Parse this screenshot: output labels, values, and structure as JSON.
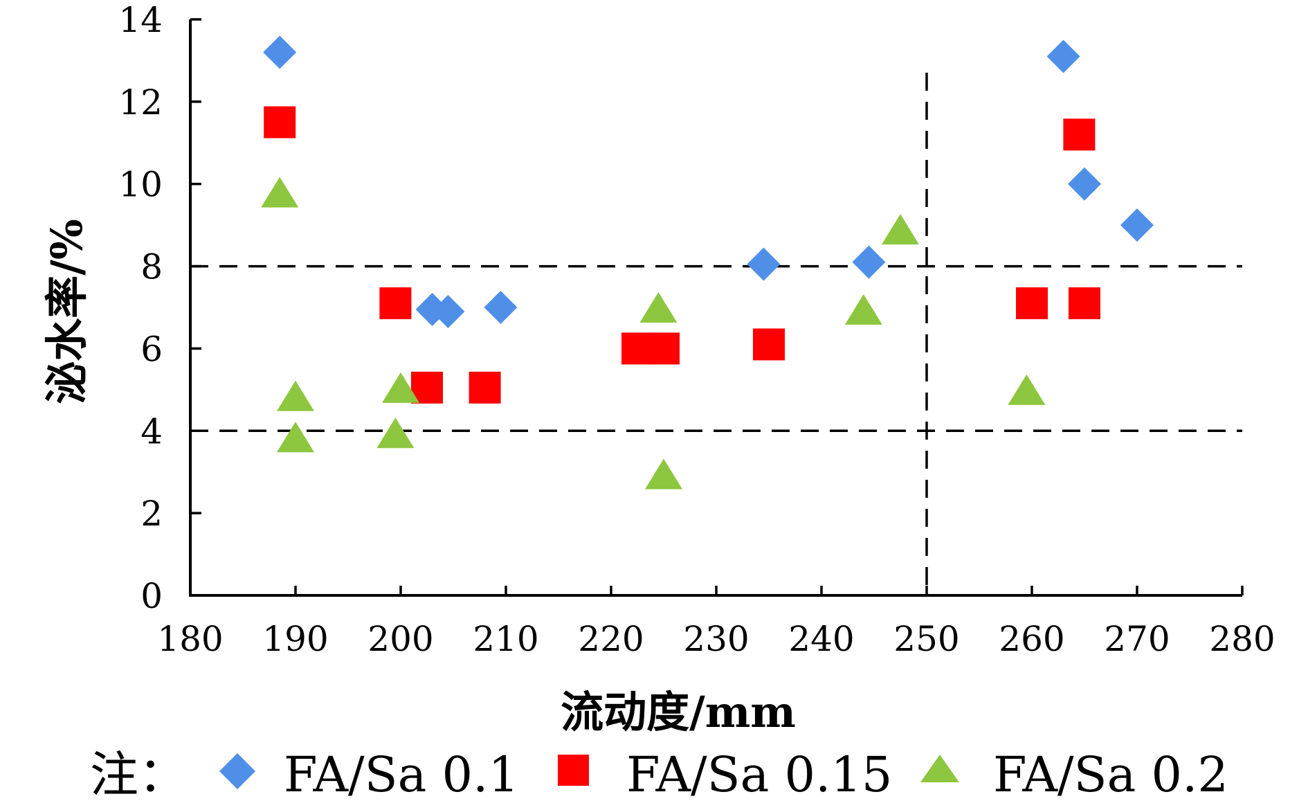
{
  "chart_data": {
    "type": "scatter",
    "xlabel": "流动度/mm",
    "ylabel": "泌水率/%",
    "xlim": [
      180,
      280
    ],
    "ylim": [
      0,
      14
    ],
    "xticks": [
      "180",
      "190",
      "200",
      "210",
      "220",
      "230",
      "240",
      "250",
      "260",
      "270",
      "280"
    ],
    "yticks": [
      "0",
      "2",
      "4",
      "6",
      "8",
      "10",
      "12",
      "14"
    ],
    "grid": false,
    "reference_lines": {
      "horizontal": [
        4,
        8
      ],
      "vertical": [
        250
      ],
      "style": "dashed"
    },
    "series": [
      {
        "name": "FA/Sa 0.1",
        "marker": "diamond",
        "color": "#4F8FE8",
        "points": [
          {
            "x": 188.5,
            "y": 13.2
          },
          {
            "x": 203,
            "y": 6.95
          },
          {
            "x": 204.5,
            "y": 6.9
          },
          {
            "x": 209.5,
            "y": 7.0
          },
          {
            "x": 234.5,
            "y": 8.05
          },
          {
            "x": 244.5,
            "y": 8.1
          },
          {
            "x": 263,
            "y": 13.1
          },
          {
            "x": 265,
            "y": 10.0
          },
          {
            "x": 270,
            "y": 9.0
          }
        ]
      },
      {
        "name": "FA/Sa 0.15",
        "marker": "square",
        "color": "#FF0000",
        "points": [
          {
            "x": 188.5,
            "y": 11.5
          },
          {
            "x": 199.5,
            "y": 7.1
          },
          {
            "x": 202.5,
            "y": 5.05
          },
          {
            "x": 208,
            "y": 5.05
          },
          {
            "x": 222.5,
            "y": 6.0
          },
          {
            "x": 225,
            "y": 6.0
          },
          {
            "x": 235,
            "y": 6.1
          },
          {
            "x": 260,
            "y": 7.1
          },
          {
            "x": 264.5,
            "y": 11.2
          },
          {
            "x": 265,
            "y": 7.1
          }
        ]
      },
      {
        "name": "FA/Sa 0.2",
        "marker": "triangle",
        "color": "#8DC63F",
        "points": [
          {
            "x": 188.5,
            "y": 9.8
          },
          {
            "x": 190,
            "y": 4.85
          },
          {
            "x": 190,
            "y": 3.85
          },
          {
            "x": 199.5,
            "y": 3.95
          },
          {
            "x": 200,
            "y": 5.05
          },
          {
            "x": 224.5,
            "y": 7.0
          },
          {
            "x": 225,
            "y": 2.95
          },
          {
            "x": 244,
            "y": 6.95
          },
          {
            "x": 247.5,
            "y": 8.9
          },
          {
            "x": 259.5,
            "y": 5.0
          }
        ]
      }
    ]
  },
  "legend": {
    "prefix": "注：",
    "items": [
      "FA/Sa 0.1",
      "FA/Sa 0.15",
      "FA/Sa 0.2"
    ]
  }
}
